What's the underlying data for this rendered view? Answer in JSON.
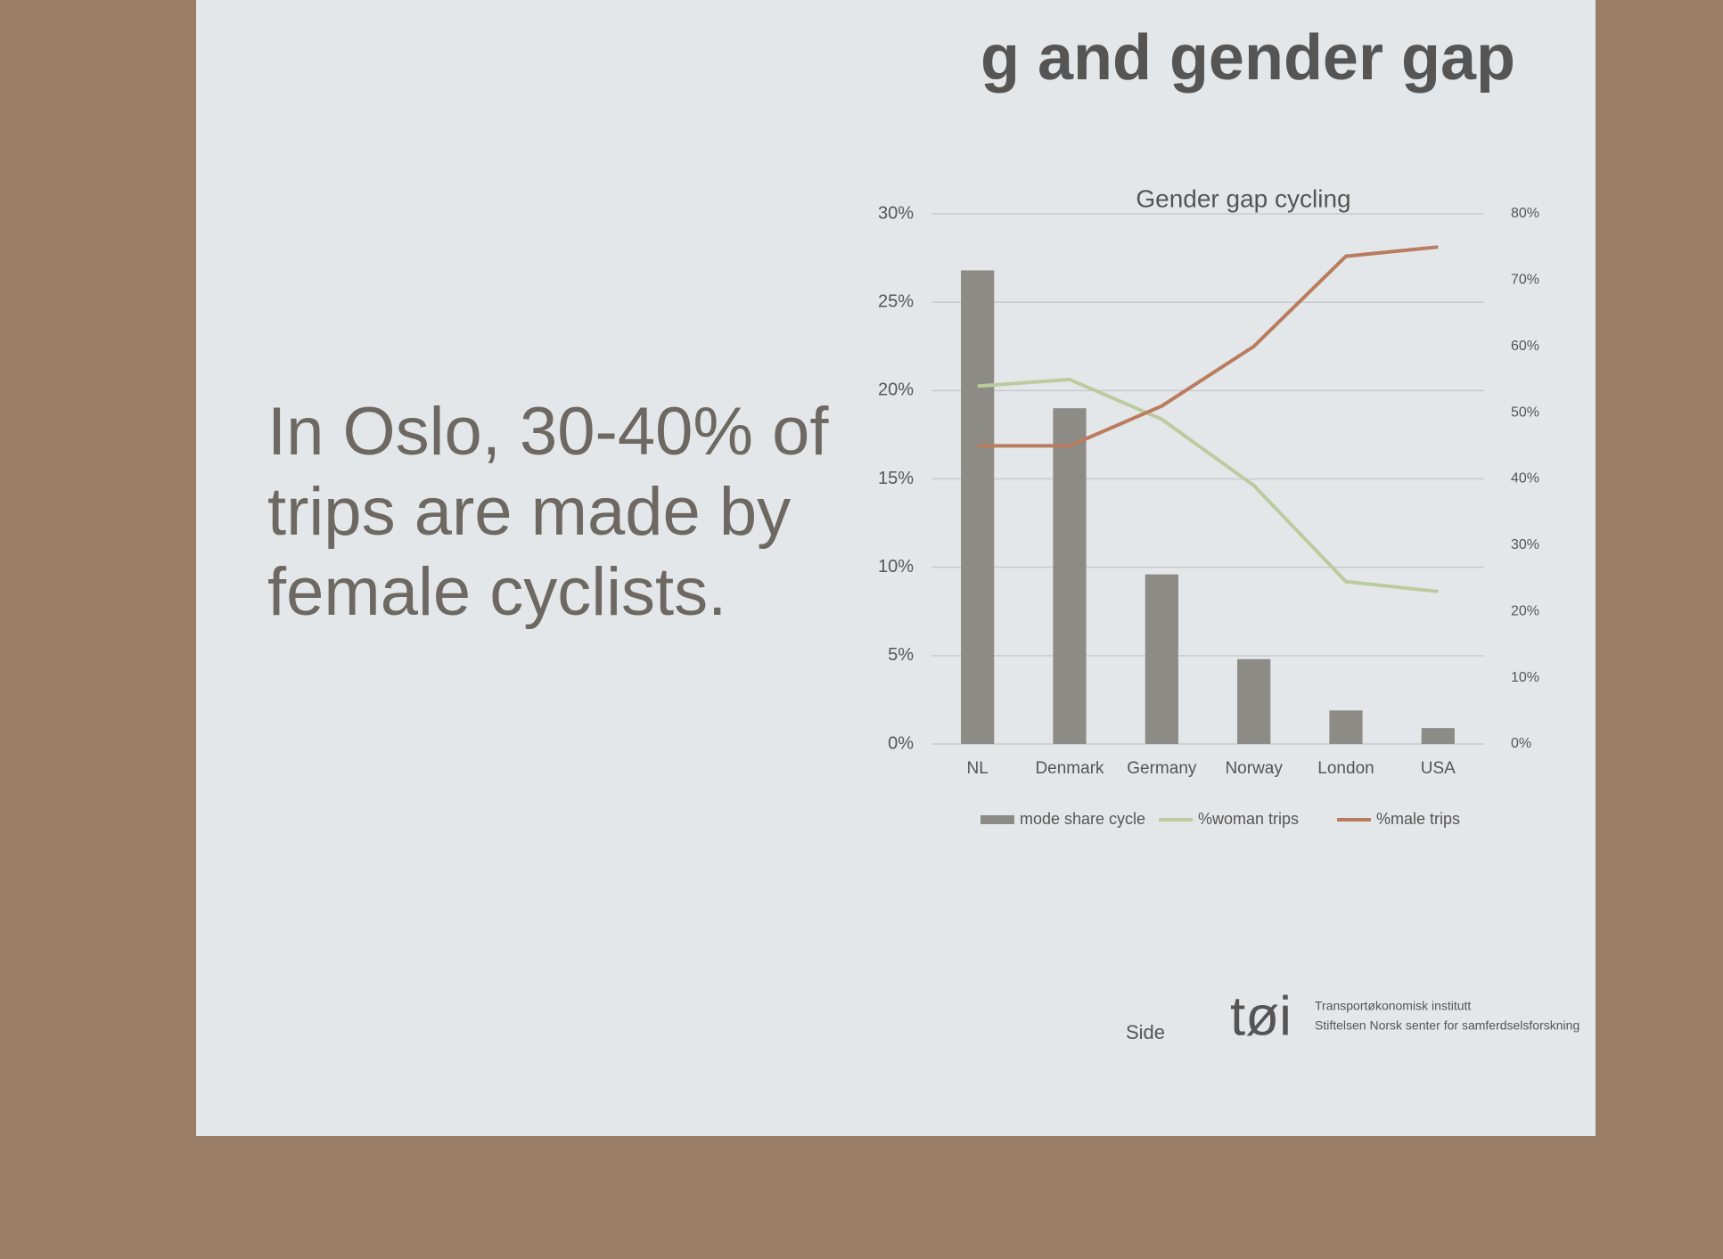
{
  "slide": {
    "title": "g and gender gap",
    "body": "In Oslo, 30-40% of trips are made by female cyclists.",
    "footer": "Side",
    "logo": "tøi",
    "institute": "Transportøkonomisk institutt",
    "foundation": "Stiftelsen Norsk senter for samferdselsforskning"
  },
  "chart_data": {
    "type": "bar",
    "title": "Gender gap cycling",
    "categories": [
      "NL",
      "Denmark",
      "Germany",
      "Norway",
      "London",
      "USA"
    ],
    "series": [
      {
        "name": "mode share cycle",
        "type": "bar",
        "color": "#8c8b86",
        "values": [
          26.8,
          19,
          9.6,
          4.8,
          1.9,
          0.9
        ]
      },
      {
        "name": "%woman trips",
        "type": "line",
        "axis": "y2",
        "color": "#bccb9e",
        "values": [
          54,
          55,
          49,
          39,
          24.5,
          23
        ]
      },
      {
        "name": "%male trips",
        "type": "line",
        "axis": "y2",
        "color": "#b97c5e",
        "values": [
          45,
          45,
          51,
          60,
          73.6,
          75
        ]
      }
    ],
    "ylim": [
      0,
      30
    ],
    "yticks": [
      {
        "value": 0,
        "label": "0%"
      },
      {
        "value": 5,
        "label": "5%"
      },
      {
        "value": 10,
        "label": "10%"
      },
      {
        "value": 15,
        "label": "15%"
      },
      {
        "value": 20,
        "label": "20%"
      },
      {
        "value": 25,
        "label": "25%"
      },
      {
        "value": 30,
        "label": "30%"
      }
    ],
    "y2lim": [
      0,
      80
    ],
    "y2ticks": [
      {
        "value": 0,
        "label": "0%"
      },
      {
        "value": 10,
        "label": "10%"
      },
      {
        "value": 20,
        "label": "20%"
      },
      {
        "value": 30,
        "label": "30%"
      },
      {
        "value": 40,
        "label": "40%"
      },
      {
        "value": 50,
        "label": "50%"
      },
      {
        "value": 60,
        "label": "60%"
      },
      {
        "value": 70,
        "label": "70%"
      },
      {
        "value": 80,
        "label": "80%"
      }
    ],
    "grid": true
  }
}
